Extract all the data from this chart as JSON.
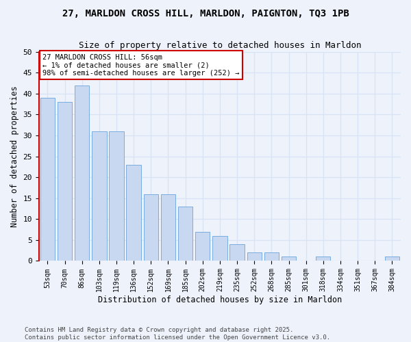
{
  "title_line1": "27, MARLDON CROSS HILL, MARLDON, PAIGNTON, TQ3 1PB",
  "title_line2": "Size of property relative to detached houses in Marldon",
  "xlabel": "Distribution of detached houses by size in Marldon",
  "ylabel": "Number of detached properties",
  "categories": [
    "53sqm",
    "70sqm",
    "86sqm",
    "103sqm",
    "119sqm",
    "136sqm",
    "152sqm",
    "169sqm",
    "185sqm",
    "202sqm",
    "219sqm",
    "235sqm",
    "252sqm",
    "268sqm",
    "285sqm",
    "301sqm",
    "318sqm",
    "334sqm",
    "351sqm",
    "367sqm",
    "384sqm"
  ],
  "values": [
    39,
    38,
    42,
    31,
    31,
    23,
    16,
    16,
    13,
    7,
    6,
    4,
    2,
    2,
    1,
    0,
    1,
    0,
    0,
    0,
    1
  ],
  "bar_color": "#c8d8f0",
  "bar_edge_color": "#7aace0",
  "background_color": "#edf2fb",
  "grid_color": "#d8e4f5",
  "annotation_text": "27 MARLDON CROSS HILL: 56sqm\n← 1% of detached houses are smaller (2)\n98% of semi-detached houses are larger (252) →",
  "annotation_box_facecolor": "#ffffff",
  "annotation_box_edgecolor": "#cc0000",
  "ylim_max": 50,
  "yticks": [
    0,
    5,
    10,
    15,
    20,
    25,
    30,
    35,
    40,
    45,
    50
  ],
  "vline_color": "#cc0000",
  "footer": "Contains HM Land Registry data © Crown copyright and database right 2025.\nContains public sector information licensed under the Open Government Licence v3.0."
}
